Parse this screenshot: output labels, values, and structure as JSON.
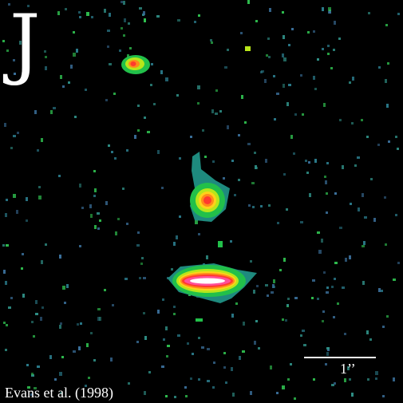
{
  "image": {
    "band_label": "J",
    "scale_label": "1’’",
    "credit": "Evans et al. (1998)"
  },
  "colors": {
    "background": "#000000",
    "text": "#ffffff",
    "noise_teal": "#2f8f86",
    "noise_green": "#2fbf4f",
    "colormap": [
      "#1e8a7e",
      "#22c04a",
      "#b8e61a",
      "#ffd21a",
      "#ff8a1a",
      "#ff3b2e",
      "#ff4f9a",
      "#ffffff"
    ]
  }
}
